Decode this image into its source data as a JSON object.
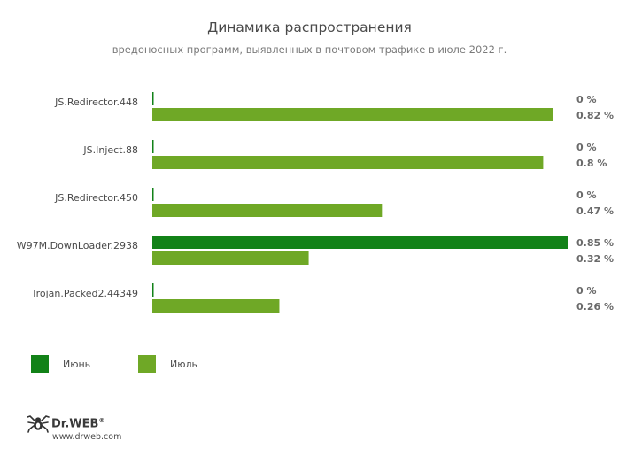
{
  "header": {
    "title": "Динамика распространения",
    "subtitle": "вредоносных программ, выявленных в почтовом трафике в июле 2022 г."
  },
  "chart_data": {
    "type": "bar",
    "orientation": "horizontal",
    "categories": [
      "JS.Redirector.448",
      "JS.Inject.88",
      "JS.Redirector.450",
      "W97M.DownLoader.2938",
      "Trojan.Packed2.44349"
    ],
    "series": [
      {
        "name": "Июнь",
        "color": "#128218",
        "values": [
          0,
          0,
          0,
          0.85,
          0
        ],
        "labels": [
          "0 %",
          "0 %",
          "0 %",
          "0.85 %",
          "0 %"
        ]
      },
      {
        "name": "Июль",
        "color": "#6fa826",
        "values": [
          0.82,
          0.8,
          0.47,
          0.32,
          0.26
        ],
        "labels": [
          "0.82 %",
          "0.8 %",
          "0.47 %",
          "0.32 %",
          "0.26 %"
        ]
      }
    ],
    "xlim": [
      0,
      0.85
    ],
    "unit": "%",
    "grid": false,
    "legend_position": "bottom-left"
  },
  "legend": {
    "items": [
      {
        "label": "Июнь",
        "color": "#128218"
      },
      {
        "label": "Июль",
        "color": "#6fa826"
      }
    ]
  },
  "footer": {
    "logo_icon": "spider-icon",
    "brand": "Dr.WEB",
    "registered": "®",
    "url": "www.drweb.com"
  }
}
